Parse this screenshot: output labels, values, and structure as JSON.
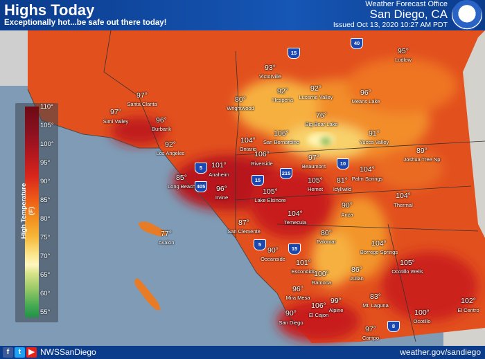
{
  "header": {
    "title": "Highs Today",
    "subtitle": "Exceptionally hot...be safe out there today!",
    "office": "Weather Forecast Office",
    "location": "San Diego, CA",
    "issued": "Issued Oct 13, 2020 10:27 AM PDT"
  },
  "footer": {
    "social_icons": [
      "facebook-icon",
      "twitter-icon",
      "youtube-icon"
    ],
    "handle": "NWSSanDiego",
    "website": "weather.gov/sandiego"
  },
  "legend": {
    "title": "High Temperature (F)",
    "labels": [
      "110°",
      "105°",
      "100°",
      "95°",
      "90°",
      "85°",
      "80°",
      "75°",
      "70°",
      "65°",
      "60°",
      "55°"
    ]
  },
  "highways": [
    "5",
    "405",
    "15",
    "215",
    "10",
    "8",
    "40",
    "15",
    "5",
    "15"
  ],
  "stations": [
    {
      "name": "Ludlow",
      "temp": "95°"
    },
    {
      "name": "Victorville",
      "temp": "93°"
    },
    {
      "name": "Hesperia",
      "temp": "92°"
    },
    {
      "name": "Lucerne Valley",
      "temp": "92°"
    },
    {
      "name": "Means Lake",
      "temp": "96°"
    },
    {
      "name": "Santa Clarita",
      "temp": "97°"
    },
    {
      "name": "Wrightwood",
      "temp": "80°"
    },
    {
      "name": "Simi Valley",
      "temp": "97°"
    },
    {
      "name": "Burbank",
      "temp": "96°"
    },
    {
      "name": "Big Bear Lake",
      "temp": "76°"
    },
    {
      "name": "Yucca Valley",
      "temp": "91°"
    },
    {
      "name": "Ontario",
      "temp": "104°"
    },
    {
      "name": "San Bernardino",
      "temp": "106°"
    },
    {
      "name": "Los Angeles",
      "temp": "92°"
    },
    {
      "name": "Joshua Tree Np",
      "temp": "89°"
    },
    {
      "name": "Riverside",
      "temp": "106°"
    },
    {
      "name": "Beaumont",
      "temp": "97°"
    },
    {
      "name": "Anaheim",
      "temp": "101°"
    },
    {
      "name": "Palm Springs",
      "temp": "104°"
    },
    {
      "name": "Long Beach",
      "temp": "85°"
    },
    {
      "name": "Hemet",
      "temp": "105°"
    },
    {
      "name": "Idyllwild",
      "temp": "81°"
    },
    {
      "name": "Irvine",
      "temp": "96°"
    },
    {
      "name": "Lake Elsinore",
      "temp": "105°"
    },
    {
      "name": "Thermal",
      "temp": "104°"
    },
    {
      "name": "Anza",
      "temp": "90°"
    },
    {
      "name": "Temecula",
      "temp": "104°"
    },
    {
      "name": "San Clemente",
      "temp": "87°"
    },
    {
      "name": "Avalon",
      "temp": "77°"
    },
    {
      "name": "Palomar",
      "temp": "80°"
    },
    {
      "name": "Borrego Springs",
      "temp": "104°"
    },
    {
      "name": "Oceanside",
      "temp": "90°"
    },
    {
      "name": "Escondido",
      "temp": "101°"
    },
    {
      "name": "Ocotillo Wells",
      "temp": "105°"
    },
    {
      "name": "Ramona",
      "temp": "100°"
    },
    {
      "name": "Julian",
      "temp": "86°"
    },
    {
      "name": "Mira Mesa",
      "temp": "96°"
    },
    {
      "name": "Mt. Laguna",
      "temp": "83°"
    },
    {
      "name": "El Centro",
      "temp": "102°"
    },
    {
      "name": "Alpine",
      "temp": "99°"
    },
    {
      "name": "El Cajon",
      "temp": "106°"
    },
    {
      "name": "Ocotillo",
      "temp": "100°"
    },
    {
      "name": "San Diego",
      "temp": "90°"
    },
    {
      "name": "Campo",
      "temp": "97°"
    }
  ]
}
